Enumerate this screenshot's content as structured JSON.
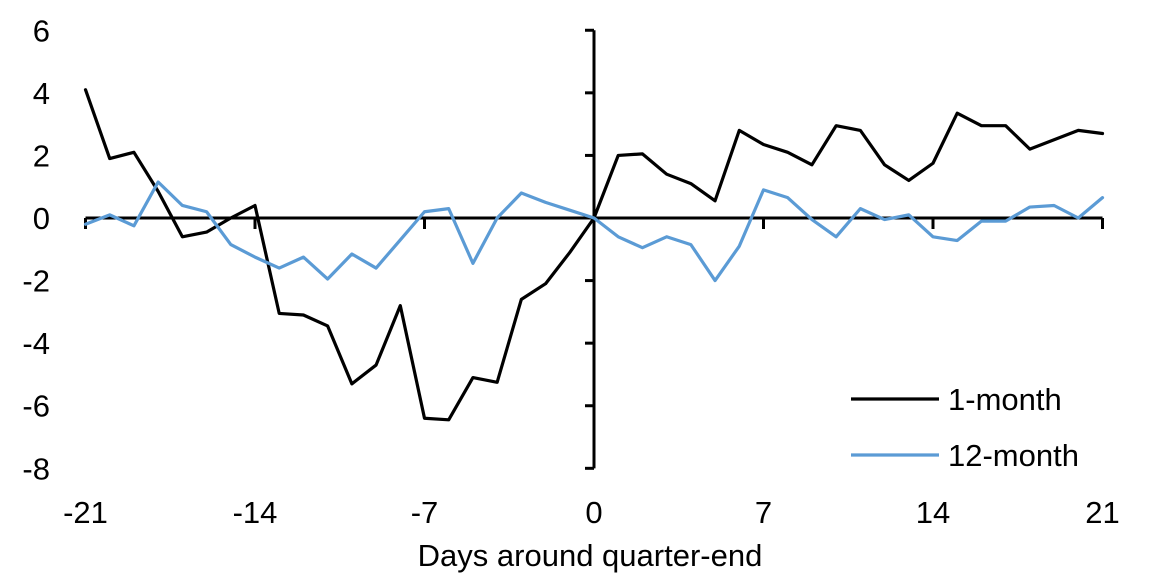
{
  "chart_data": {
    "type": "line",
    "xlabel": "Days around quarter-end",
    "xlim": [
      -21,
      21
    ],
    "ylim": [
      -8,
      6
    ],
    "x_ticks": [
      -21,
      -14,
      -7,
      0,
      7,
      14,
      21
    ],
    "y_ticks": [
      6,
      4,
      2,
      0,
      -2,
      -4,
      -6,
      -8
    ],
    "grid": false,
    "legend_position": "lower-right",
    "axis_color": "#000000",
    "x": [
      -21,
      -20,
      -19,
      -18,
      -17,
      -16,
      -15,
      -14,
      -13,
      -12,
      -11,
      -10,
      -9,
      -8,
      -7,
      -6,
      -5,
      -4,
      -3,
      -2,
      -1,
      0,
      1,
      2,
      3,
      4,
      5,
      6,
      7,
      8,
      9,
      10,
      11,
      12,
      13,
      14,
      15,
      16,
      17,
      18,
      19,
      20,
      21
    ],
    "series": [
      {
        "name": "1-month",
        "color": "#000000",
        "values": [
          4.1,
          1.9,
          2.1,
          0.85,
          -0.6,
          -0.45,
          0.0,
          0.4,
          -3.05,
          -3.1,
          -3.45,
          -5.3,
          -4.7,
          -2.8,
          -6.4,
          -6.45,
          -5.1,
          -5.25,
          -2.6,
          -2.1,
          -1.1,
          0.0,
          2.0,
          2.05,
          1.4,
          1.1,
          0.55,
          2.8,
          2.35,
          2.1,
          1.7,
          2.95,
          2.8,
          1.7,
          1.2,
          1.75,
          3.35,
          2.95,
          2.95,
          2.2,
          2.5,
          2.8,
          2.7
        ]
      },
      {
        "name": "12-month",
        "color": "#5B9BD5",
        "values": [
          -0.2,
          0.1,
          -0.25,
          1.15,
          0.4,
          0.2,
          -0.85,
          -1.25,
          -1.6,
          -1.25,
          -1.95,
          -1.15,
          -1.6,
          -0.7,
          0.2,
          0.3,
          -1.45,
          0.0,
          0.8,
          0.5,
          0.25,
          0.0,
          -0.6,
          -0.95,
          -0.6,
          -0.85,
          -2.0,
          -0.9,
          0.9,
          0.65,
          -0.05,
          -0.6,
          0.3,
          -0.05,
          0.1,
          -0.6,
          -0.72,
          -0.1,
          -0.1,
          0.35,
          0.4,
          0.0,
          0.65
        ]
      }
    ]
  }
}
